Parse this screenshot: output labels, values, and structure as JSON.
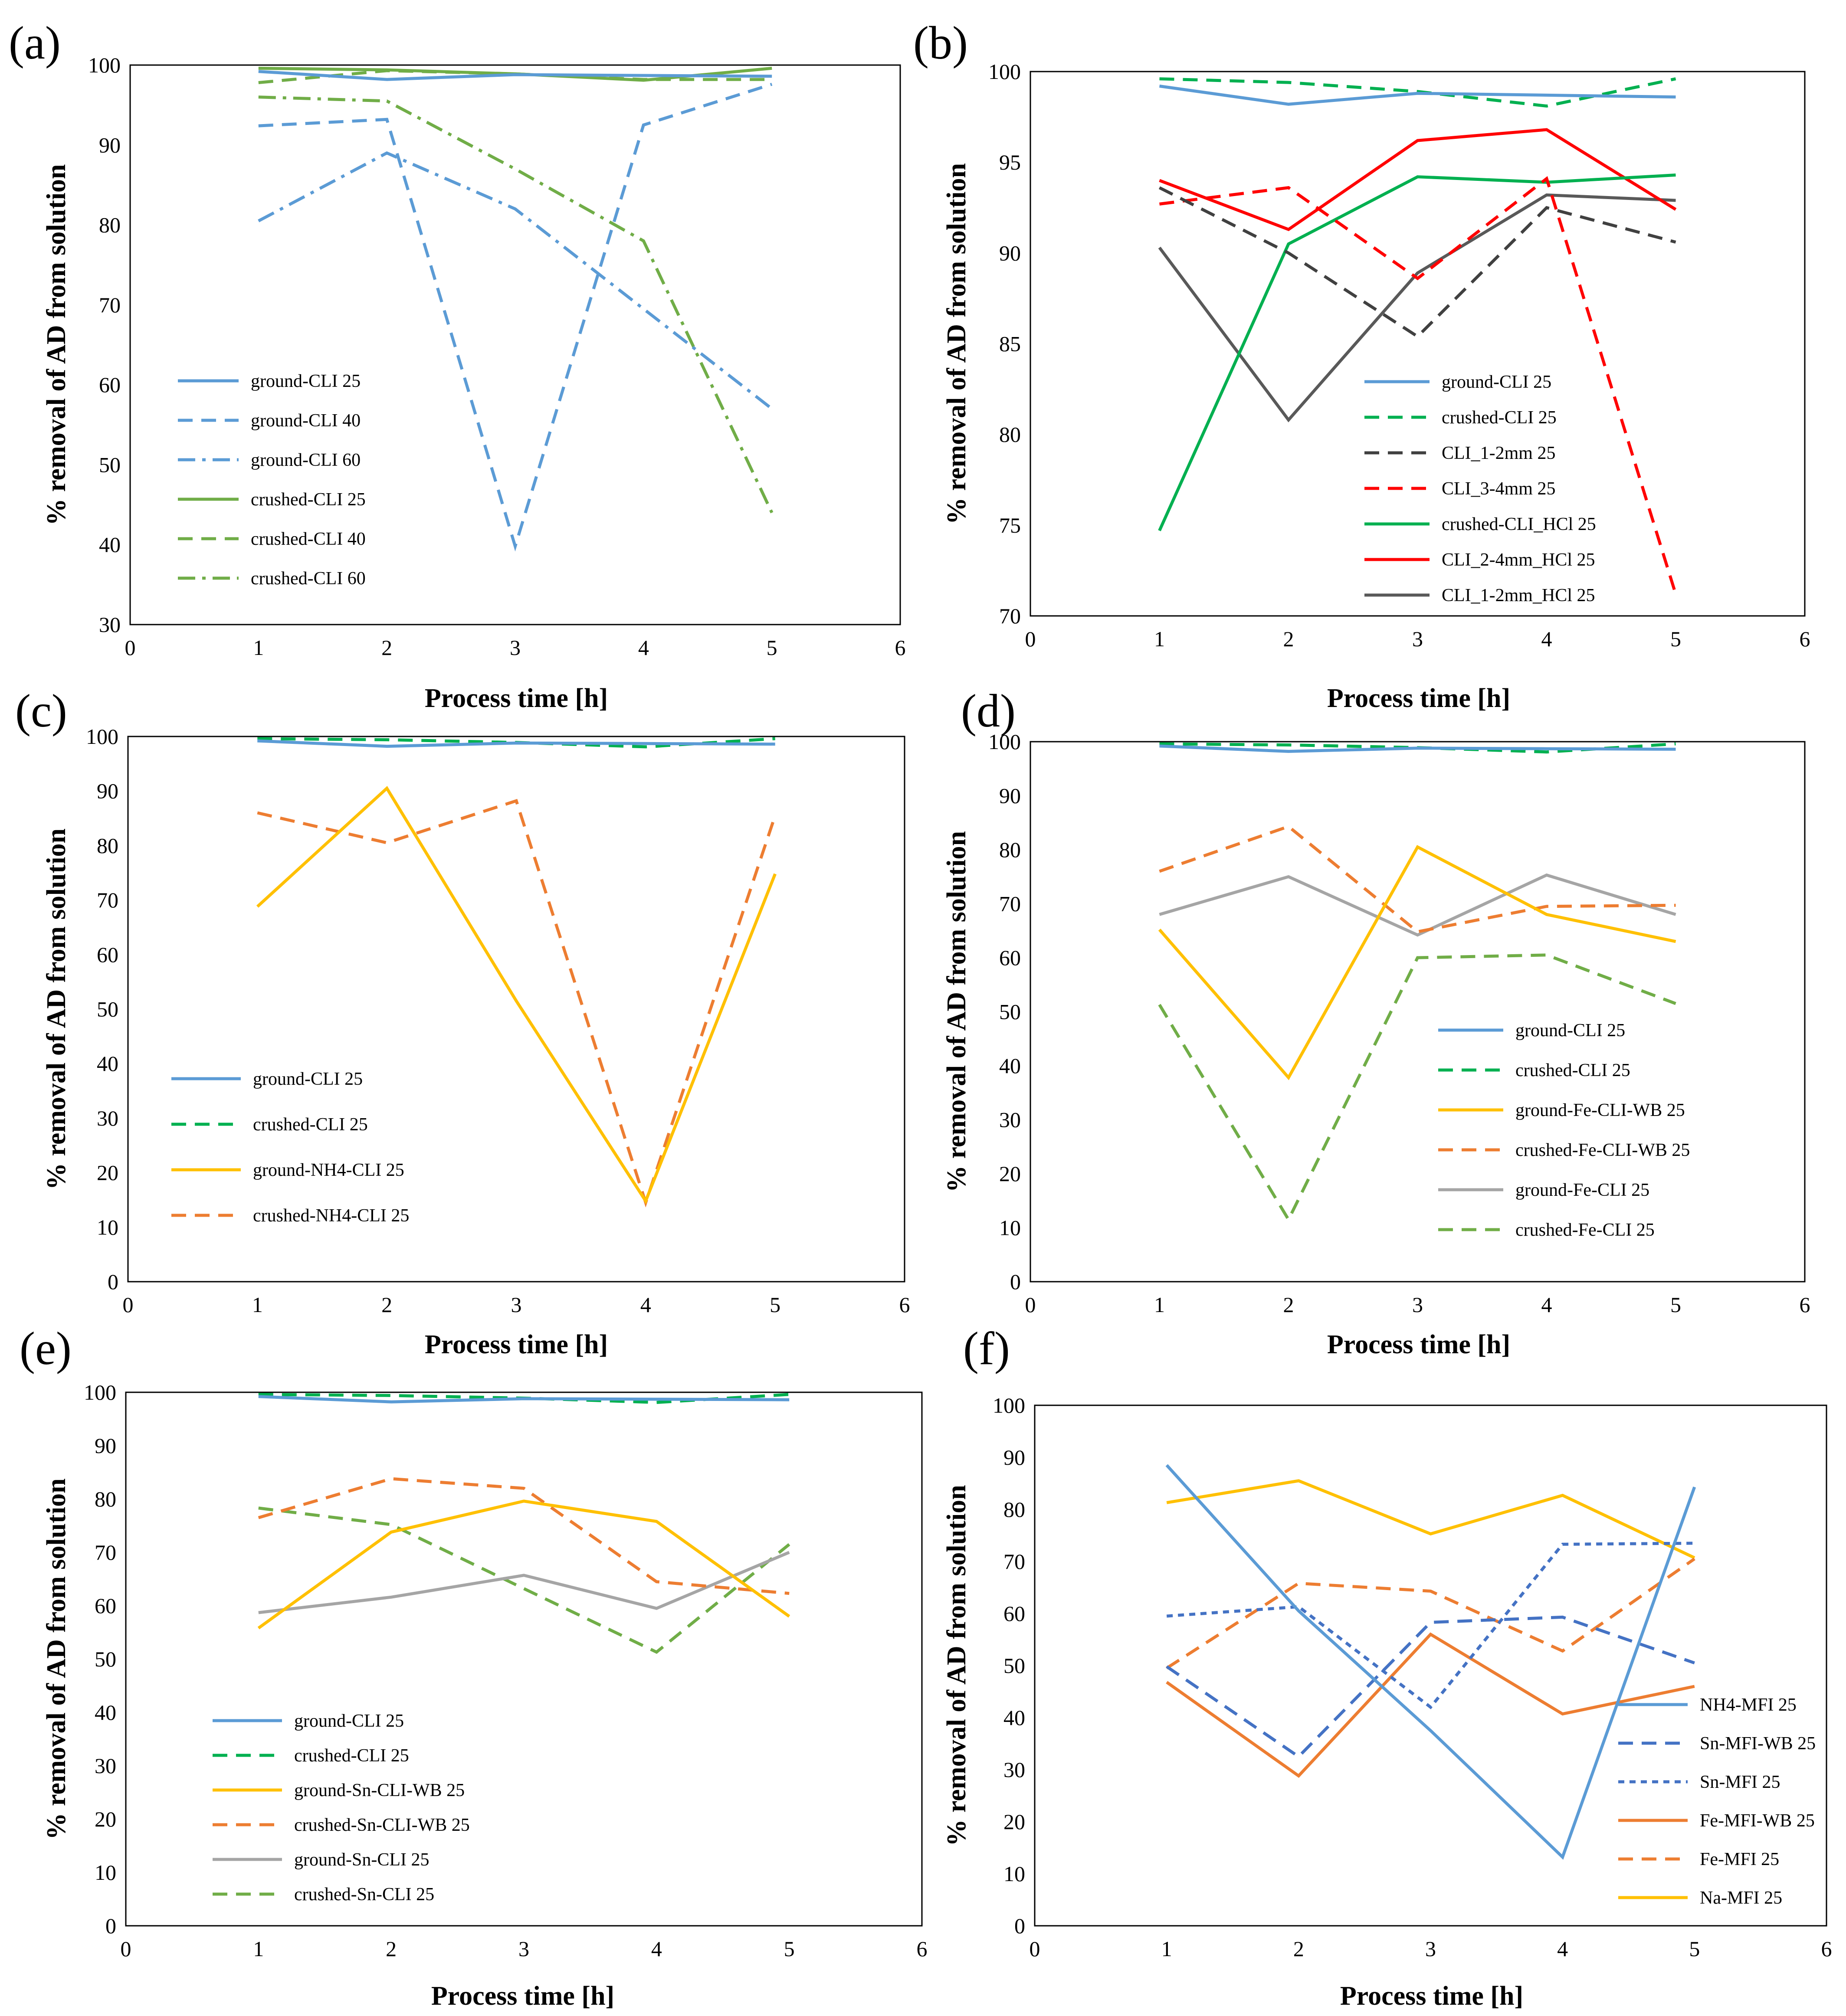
{
  "figure": {
    "colors": {
      "blue": "#5b9bd5",
      "green": "#70ad47",
      "bright_green": "#00b050",
      "dark_gray": "#404040",
      "red": "#ff0000",
      "gray_dark2": "#595959",
      "yellow": "#ffc000",
      "orange": "#ed7d31",
      "gray": "#a5a5a5",
      "royal_blue": "#4472c4"
    }
  },
  "chart_data": [
    {
      "panel": "(a)",
      "type": "line",
      "xlabel": "Process time [h]",
      "ylabel": "% removal of AD from solution",
      "xlim": [
        0,
        6
      ],
      "ylim": [
        30,
        100
      ],
      "xticks": [
        0,
        1,
        2,
        3,
        4,
        5,
        6
      ],
      "yticks": [
        30,
        40,
        50,
        60,
        70,
        80,
        90,
        100
      ],
      "x": [
        1,
        2,
        3,
        4,
        5
      ],
      "legend_position": "left",
      "series": [
        {
          "name": "ground-CLI 25",
          "color": "#5b9bd5",
          "dash": "solid",
          "values": [
            99.2,
            98.2,
            98.8,
            98.7,
            98.6
          ]
        },
        {
          "name": "ground-CLI 40",
          "color": "#5b9bd5",
          "dash": "dash",
          "values": [
            92.4,
            93.2,
            39.8,
            92.5,
            97.6
          ]
        },
        {
          "name": "ground-CLI 60",
          "color": "#5b9bd5",
          "dash": "dashdot",
          "values": [
            80.5,
            89.0,
            82.0,
            69.5,
            57.0
          ]
        },
        {
          "name": "crushed-CLI 25",
          "color": "#70ad47",
          "dash": "solid",
          "values": [
            99.6,
            99.4,
            98.9,
            98.1,
            99.6
          ]
        },
        {
          "name": "crushed-CLI 40",
          "color": "#70ad47",
          "dash": "dash",
          "values": [
            97.8,
            99.3,
            98.9,
            98.2,
            98.2
          ]
        },
        {
          "name": "crushed-CLI 60",
          "color": "#70ad47",
          "dash": "dashdot",
          "values": [
            96.0,
            95.5,
            87.0,
            78.0,
            44.0
          ]
        }
      ]
    },
    {
      "panel": "(b)",
      "type": "line",
      "xlabel": "Process time [h]",
      "ylabel": "% removal of AD from solution",
      "xlim": [
        0,
        6
      ],
      "ylim": [
        70,
        100
      ],
      "xticks": [
        0,
        1,
        2,
        3,
        4,
        5,
        6
      ],
      "yticks": [
        70,
        75,
        80,
        85,
        90,
        95,
        100
      ],
      "x": [
        1,
        2,
        3,
        4,
        5
      ],
      "legend_position": "bottom-right",
      "series": [
        {
          "name": "ground-CLI 25",
          "color": "#5b9bd5",
          "dash": "solid",
          "values": [
            99.2,
            98.2,
            98.8,
            98.7,
            98.6
          ]
        },
        {
          "name": "crushed-CLI 25",
          "color": "#00b050",
          "dash": "dash",
          "values": [
            99.6,
            99.4,
            98.9,
            98.1,
            99.6
          ]
        },
        {
          "name": "CLI_1-2mm 25",
          "color": "#404040",
          "dash": "dash",
          "values": [
            93.6,
            90.0,
            85.4,
            92.5,
            90.6
          ]
        },
        {
          "name": "CLI_3-4mm 25",
          "color": "#ff0000",
          "dash": "dash",
          "values": [
            92.7,
            93.6,
            88.6,
            94.1,
            71.2
          ]
        },
        {
          "name": "crushed-CLI_HCl 25",
          "color": "#00b050",
          "dash": "solid",
          "values": [
            74.7,
            90.5,
            94.2,
            93.9,
            94.3
          ]
        },
        {
          "name": "CLI_2-4mm_HCl 25",
          "color": "#ff0000",
          "dash": "solid",
          "values": [
            94.0,
            91.3,
            96.2,
            96.8,
            92.4
          ]
        },
        {
          "name": "CLI_1-2mm_HCl 25",
          "color": "#595959",
          "dash": "solid",
          "values": [
            90.3,
            80.8,
            88.9,
            93.2,
            92.9
          ]
        }
      ]
    },
    {
      "panel": "(c)",
      "type": "line",
      "xlabel": "Process time [h]",
      "ylabel": "% removal of AD from solution",
      "xlim": [
        0,
        6
      ],
      "ylim": [
        0,
        100
      ],
      "xticks": [
        0,
        1,
        2,
        3,
        4,
        5,
        6
      ],
      "yticks": [
        0,
        10,
        20,
        30,
        40,
        50,
        60,
        70,
        80,
        90,
        100
      ],
      "x": [
        1,
        2,
        3,
        4,
        5
      ],
      "legend_position": "left",
      "series": [
        {
          "name": "ground-CLI 25",
          "color": "#5b9bd5",
          "dash": "solid",
          "values": [
            99.2,
            98.2,
            98.8,
            98.7,
            98.6
          ]
        },
        {
          "name": "crushed-CLI 25",
          "color": "#00b050",
          "dash": "dash",
          "values": [
            99.6,
            99.4,
            98.9,
            98.1,
            99.6
          ]
        },
        {
          "name": "ground-NH4-CLI 25",
          "color": "#ffc000",
          "dash": "solid",
          "values": [
            68.8,
            90.5,
            51.5,
            14.8,
            74.8
          ]
        },
        {
          "name": "crushed-NH4-CLI 25",
          "color": "#ed7d31",
          "dash": "dash",
          "values": [
            86.0,
            80.5,
            88.2,
            14.5,
            85.5
          ]
        }
      ]
    },
    {
      "panel": "(d)",
      "type": "line",
      "xlabel": "Process time [h]",
      "ylabel": "% removal of AD from solution",
      "xlim": [
        0,
        6
      ],
      "ylim": [
        0,
        100
      ],
      "xticks": [
        0,
        1,
        2,
        3,
        4,
        5,
        6
      ],
      "yticks": [
        0,
        10,
        20,
        30,
        40,
        50,
        60,
        70,
        80,
        90,
        100
      ],
      "x": [
        1,
        2,
        3,
        4,
        5
      ],
      "legend_position": "bottom-right",
      "series": [
        {
          "name": "ground-CLI 25",
          "color": "#5b9bd5",
          "dash": "solid",
          "values": [
            99.2,
            98.2,
            98.8,
            98.7,
            98.6
          ]
        },
        {
          "name": "crushed-CLI 25",
          "color": "#00b050",
          "dash": "dash",
          "values": [
            99.6,
            99.4,
            98.9,
            98.1,
            99.6
          ]
        },
        {
          "name": "ground-Fe-CLI-WB 25",
          "color": "#ffc000",
          "dash": "solid",
          "values": [
            65.2,
            37.8,
            80.5,
            68.0,
            63.0
          ]
        },
        {
          "name": "crushed-Fe-CLI-WB 25",
          "color": "#ed7d31",
          "dash": "dash",
          "values": [
            76.0,
            84.3,
            64.8,
            69.5,
            69.7
          ]
        },
        {
          "name": "ground-Fe-CLI 25",
          "color": "#a5a5a5",
          "dash": "solid",
          "values": [
            68.0,
            75.0,
            64.2,
            75.3,
            68.0
          ]
        },
        {
          "name": "crushed-Fe-CLI 25",
          "color": "#70ad47",
          "dash": "dash",
          "values": [
            51.3,
            11.5,
            60.0,
            60.5,
            51.5
          ]
        }
      ]
    },
    {
      "panel": "(e)",
      "type": "line",
      "xlabel": "Process time [h]",
      "ylabel": "% removal of AD from solution",
      "xlim": [
        0,
        6
      ],
      "ylim": [
        0,
        100
      ],
      "xticks": [
        0,
        1,
        2,
        3,
        4,
        5,
        6
      ],
      "yticks": [
        0,
        10,
        20,
        30,
        40,
        50,
        60,
        70,
        80,
        90,
        100
      ],
      "x": [
        1,
        2,
        3,
        4,
        5
      ],
      "legend_position": "left",
      "series": [
        {
          "name": "ground-CLI 25",
          "color": "#5b9bd5",
          "dash": "solid",
          "values": [
            99.2,
            98.2,
            98.8,
            98.7,
            98.6
          ]
        },
        {
          "name": "crushed-CLI 25",
          "color": "#00b050",
          "dash": "dash",
          "values": [
            99.6,
            99.4,
            98.9,
            98.1,
            99.6
          ]
        },
        {
          "name": "ground-Sn-CLI-WB 25",
          "color": "#ffc000",
          "dash": "solid",
          "values": [
            55.8,
            73.8,
            79.6,
            75.8,
            58.0
          ]
        },
        {
          "name": "crushed-Sn-CLI-WB 25",
          "color": "#ed7d31",
          "dash": "dash",
          "values": [
            76.5,
            83.8,
            82.0,
            64.5,
            62.3
          ]
        },
        {
          "name": "ground-Sn-CLI 25",
          "color": "#a5a5a5",
          "dash": "solid",
          "values": [
            58.7,
            61.6,
            65.7,
            59.5,
            70.0
          ]
        },
        {
          "name": "crushed-Sn-CLI 25",
          "color": "#70ad47",
          "dash": "dash",
          "values": [
            78.3,
            75.2,
            63.2,
            51.3,
            71.5
          ]
        }
      ]
    },
    {
      "panel": "(f)",
      "type": "line",
      "xlabel": "Process time [h]",
      "ylabel": "% removal of AD from solution",
      "xlim": [
        0,
        6
      ],
      "ylim": [
        0,
        100
      ],
      "xticks": [
        0,
        1,
        2,
        3,
        4,
        5,
        6
      ],
      "yticks": [
        0,
        10,
        20,
        30,
        40,
        50,
        60,
        70,
        80,
        90,
        100
      ],
      "x": [
        1,
        2,
        3,
        4,
        5
      ],
      "legend_position": "right",
      "series": [
        {
          "name": "NH4-MFI 25",
          "color": "#5b9bd5",
          "dash": "solid",
          "values": [
            88.5,
            60.5,
            37.5,
            13.2,
            84.3
          ]
        },
        {
          "name": "Sn-MFI-WB 25",
          "color": "#4472c4",
          "dash": "dash",
          "values": [
            49.8,
            32.5,
            58.3,
            59.3,
            50.5
          ]
        },
        {
          "name": "Sn-MFI 25",
          "color": "#4472c4",
          "dash": "dot",
          "values": [
            59.5,
            61.3,
            42.0,
            73.3,
            73.5
          ]
        },
        {
          "name": "Fe-MFI-WB 25",
          "color": "#ed7d31",
          "dash": "solid",
          "values": [
            46.8,
            28.8,
            56.0,
            40.7,
            46.0
          ]
        },
        {
          "name": "Fe-MFI 25",
          "color": "#ed7d31",
          "dash": "dash",
          "values": [
            49.5,
            65.8,
            64.3,
            52.8,
            70.5
          ]
        },
        {
          "name": "Na-MFI 25",
          "color": "#ffc000",
          "dash": "solid",
          "values": [
            81.3,
            85.5,
            75.3,
            82.7,
            70.7
          ]
        }
      ]
    }
  ]
}
